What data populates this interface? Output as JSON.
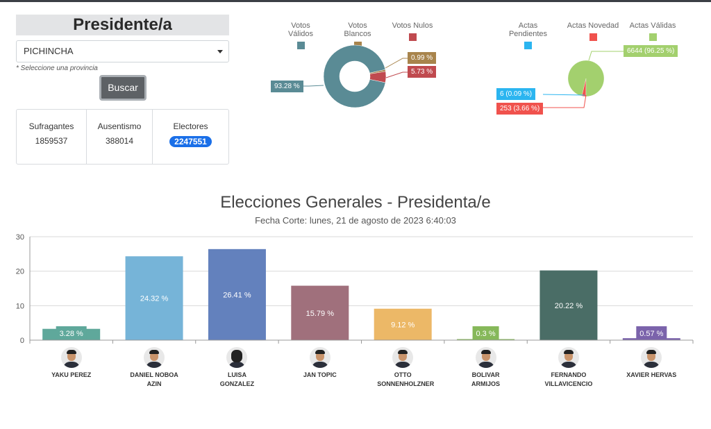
{
  "panel": {
    "title": "Presidente/a",
    "province_select": "PICHINCHA",
    "hint": "* Seleccione una provincia",
    "search_button": "Buscar",
    "stats": [
      {
        "label": "Sufragantes",
        "value": "1859537"
      },
      {
        "label": "Ausentismo",
        "value": "388014"
      },
      {
        "label": "Electores",
        "value": "2247551"
      }
    ]
  },
  "votes_donut": {
    "legend": [
      "Votos Válidos",
      "Votos Blancos",
      "Votos Nulos"
    ],
    "colors": [
      "#5a8b95",
      "#a8844c",
      "#c04a4f"
    ],
    "values": [
      93.28,
      0.99,
      5.73
    ],
    "labels": [
      "93.28 %",
      "0.99 %",
      "5.73 %"
    ]
  },
  "actas_pie": {
    "legend": [
      "Actas Pendientes",
      "Actas Novedad",
      "Actas Válidas"
    ],
    "colors": [
      "#2bb5f0",
      "#f0524d",
      "#a3d06e"
    ],
    "values": [
      0.09,
      3.66,
      96.25
    ],
    "labels": [
      "6 (0.09 %)",
      "253 (3.66 %)",
      "6644 (96.25 %)"
    ]
  },
  "chart_data": {
    "type": "bar",
    "title": "Elecciones Generales - Presidenta/e",
    "subtitle": "Fecha Corte: lunes, 21 de agosto de 2023 6:40:03",
    "categories": [
      "YAKU PEREZ",
      "DANIEL NOBOA AZIN",
      "LUISA GONZALEZ",
      "JAN TOPIC",
      "OTTO SONNENHOLZNER",
      "BOLIVAR ARMIJOS",
      "FERNANDO VILLAVICENCIO",
      "XAVIER HERVAS"
    ],
    "values": [
      3.28,
      24.32,
      26.41,
      15.79,
      9.12,
      0.3,
      20.22,
      0.57
    ],
    "value_labels": [
      "3.28 %",
      "24.32 %",
      "26.41 %",
      "15.79 %",
      "9.12 %",
      "0.3 %",
      "20.22 %",
      "0.57 %"
    ],
    "colors": [
      "#5fa89b",
      "#76b4d8",
      "#6381bd",
      "#a0707c",
      "#ecb867",
      "#86b85a",
      "#4a6d66",
      "#7b63ab"
    ],
    "ylim": [
      0,
      30
    ],
    "yticks": [
      "0",
      "10",
      "20",
      "30"
    ],
    "grid": true
  }
}
